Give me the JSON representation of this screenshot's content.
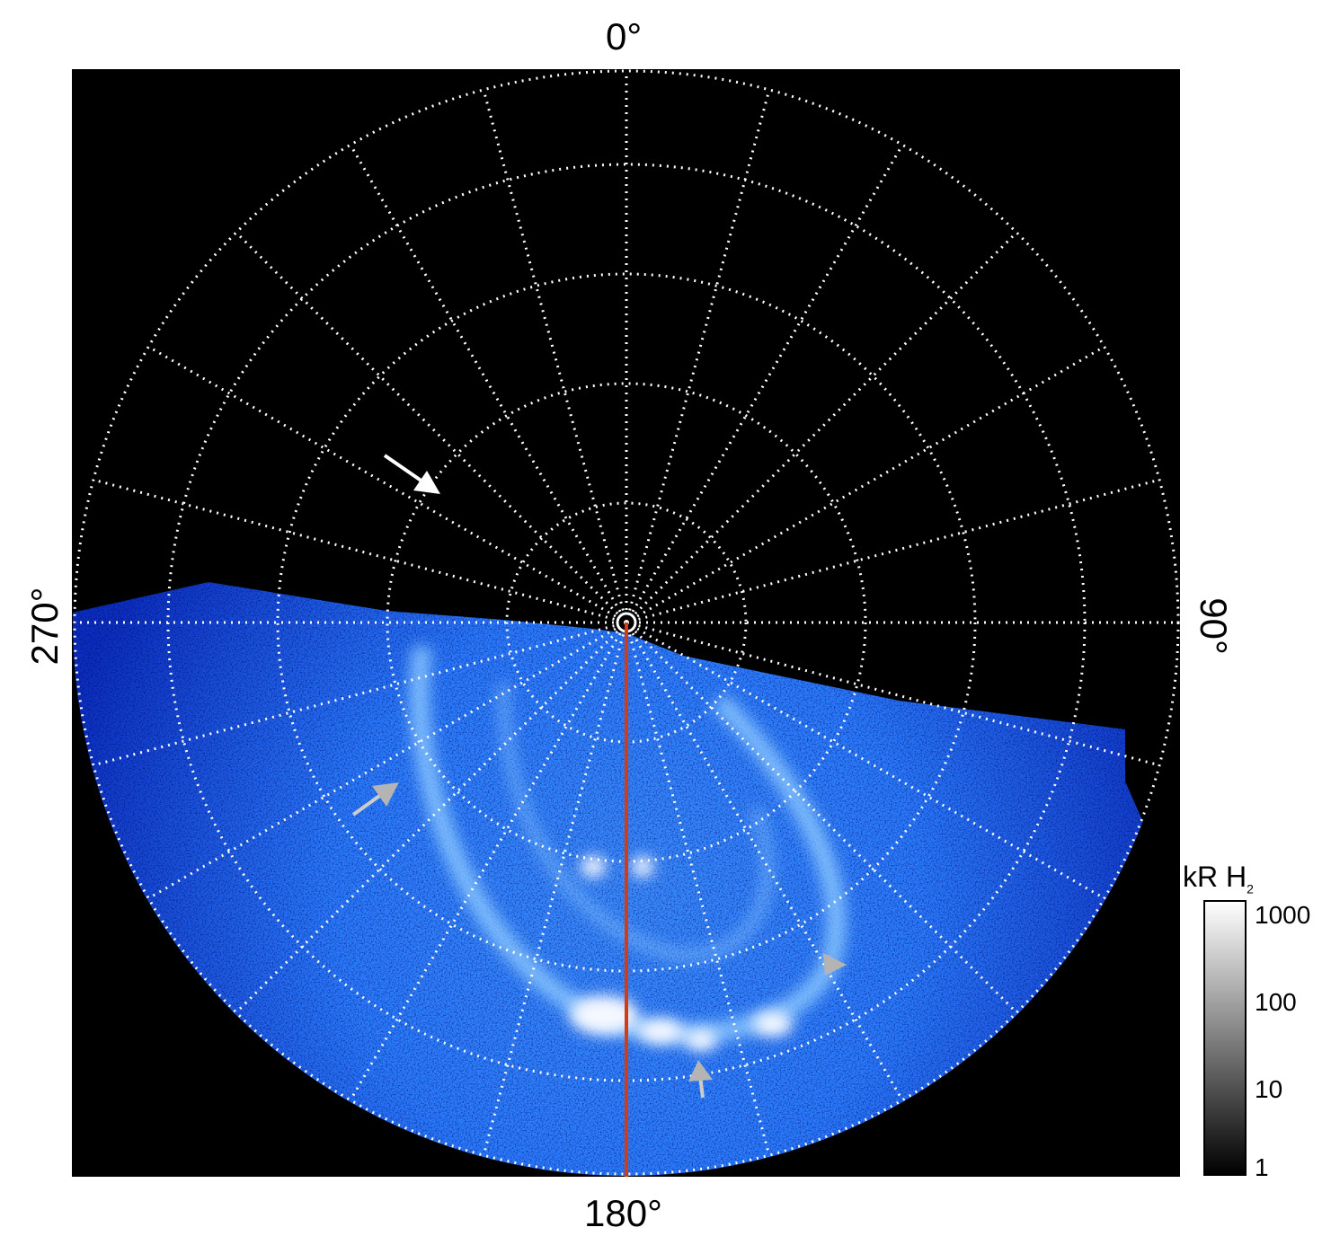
{
  "map": {
    "longitude_labels": {
      "top": "0°",
      "right": "90°",
      "bottom": "180°",
      "left": "270°"
    },
    "grid": "dotted white, 15° meridians, latitude rings",
    "colors": {
      "background": "#000000",
      "emission": "#1e6fff",
      "meridian_line": "#d23c14",
      "grid": "#ffffff",
      "arrows_primary": "#ffffff",
      "arrows_secondary": "#b4b4b4"
    }
  },
  "colorbar": {
    "title": "kR H",
    "title_subscript": "2",
    "scale": "log",
    "ticks": [
      "1000",
      "100",
      "10",
      "1"
    ],
    "range": [
      1,
      1000
    ]
  }
}
